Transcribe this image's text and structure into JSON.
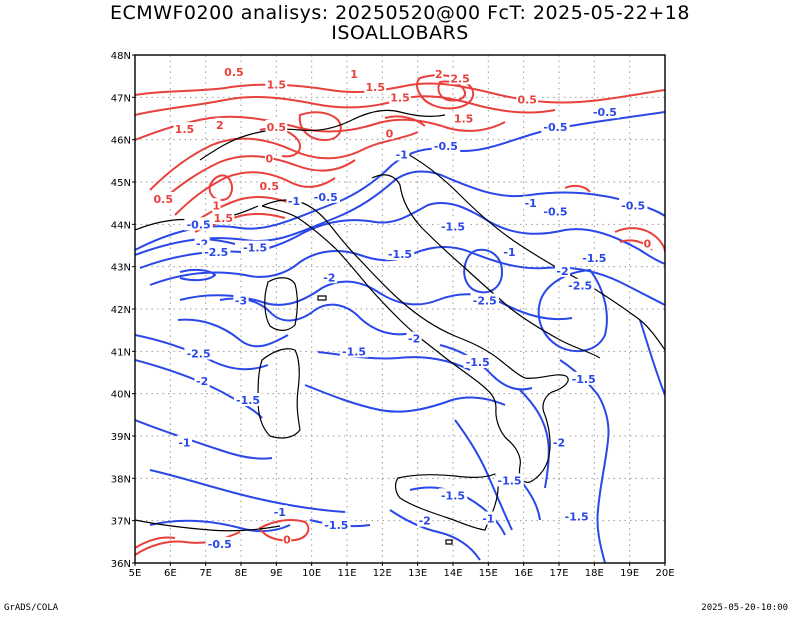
{
  "title": {
    "line1": "ECMWF0200 analisys: 20250520@00 FcT: 2025-05-22+18",
    "line2": "ISOALLOBARS"
  },
  "footer": {
    "left": "GrADS/COLA",
    "right": "2025-05-20-10:00"
  },
  "axes": {
    "lon_labels": [
      "5E",
      "6E",
      "7E",
      "8E",
      "9E",
      "10E",
      "11E",
      "12E",
      "13E",
      "14E",
      "15E",
      "16E",
      "17E",
      "18E",
      "19E",
      "20E"
    ],
    "lat_labels": [
      "48N",
      "47N",
      "46N",
      "45N",
      "44N",
      "43N",
      "42N",
      "41N",
      "40N",
      "39N",
      "38N",
      "37N",
      "36N"
    ],
    "lon_range": [
      5,
      20
    ],
    "lat_range": [
      36,
      48
    ],
    "grid": "dotted"
  },
  "colors": {
    "positive": "#e8413c",
    "negative": "#2a48e8",
    "coast": "#000000",
    "grid": "#9a9a9a"
  },
  "contour_labels": [
    {
      "text": "0.5",
      "lon": 7.8,
      "lat": 47.6,
      "sign": "pos"
    },
    {
      "text": "1.5",
      "lon": 9.0,
      "lat": 47.3,
      "sign": "pos"
    },
    {
      "text": "1",
      "lon": 11.2,
      "lat": 47.55,
      "sign": "pos"
    },
    {
      "text": "1.5",
      "lon": 11.8,
      "lat": 47.25,
      "sign": "pos"
    },
    {
      "text": "1.5",
      "lon": 12.5,
      "lat": 47.0,
      "sign": "pos"
    },
    {
      "text": "2",
      "lon": 13.6,
      "lat": 47.55,
      "sign": "pos"
    },
    {
      "text": "2.5",
      "lon": 14.2,
      "lat": 47.45,
      "sign": "pos"
    },
    {
      "text": "0.5",
      "lon": 16.1,
      "lat": 46.95,
      "sign": "pos"
    },
    {
      "text": "1.5",
      "lon": 6.4,
      "lat": 46.25,
      "sign": "pos"
    },
    {
      "text": "2",
      "lon": 7.4,
      "lat": 46.35,
      "sign": "pos"
    },
    {
      "text": "0.5",
      "lon": 9.0,
      "lat": 46.3,
      "sign": "pos"
    },
    {
      "text": "0",
      "lon": 12.2,
      "lat": 46.15,
      "sign": "pos"
    },
    {
      "text": "1.5",
      "lon": 14.3,
      "lat": 46.5,
      "sign": "pos"
    },
    {
      "text": "0",
      "lon": 8.8,
      "lat": 45.55,
      "sign": "pos"
    },
    {
      "text": "0.5",
      "lon": 8.8,
      "lat": 44.9,
      "sign": "pos"
    },
    {
      "text": "0.5",
      "lon": 5.8,
      "lat": 44.6,
      "sign": "pos"
    },
    {
      "text": "1",
      "lon": 7.3,
      "lat": 44.45,
      "sign": "pos"
    },
    {
      "text": "1.5",
      "lon": 7.5,
      "lat": 44.15,
      "sign": "pos"
    },
    {
      "text": "0",
      "lon": 19.5,
      "lat": 43.55,
      "sign": "pos"
    },
    {
      "text": "0",
      "lon": 9.3,
      "lat": 36.55,
      "sign": "pos"
    },
    {
      "text": "-0.5",
      "lon": 16.9,
      "lat": 46.3,
      "sign": "neg"
    },
    {
      "text": "-0.5",
      "lon": 18.3,
      "lat": 46.65,
      "sign": "neg"
    },
    {
      "text": "-0.5",
      "lon": 13.8,
      "lat": 45.85,
      "sign": "neg"
    },
    {
      "text": "-1",
      "lon": 12.55,
      "lat": 45.65,
      "sign": "neg"
    },
    {
      "text": "-0.5",
      "lon": 10.4,
      "lat": 44.65,
      "sign": "neg"
    },
    {
      "text": "-1",
      "lon": 9.5,
      "lat": 44.55,
      "sign": "neg"
    },
    {
      "text": "-0.5",
      "lon": 6.8,
      "lat": 44.0,
      "sign": "neg"
    },
    {
      "text": "-2",
      "lon": 6.9,
      "lat": 43.55,
      "sign": "neg"
    },
    {
      "text": "-2.5",
      "lon": 7.3,
      "lat": 43.35,
      "sign": "neg"
    },
    {
      "text": "-1.5",
      "lon": 8.4,
      "lat": 43.45,
      "sign": "neg"
    },
    {
      "text": "-1",
      "lon": 16.2,
      "lat": 44.5,
      "sign": "neg"
    },
    {
      "text": "-0.5",
      "lon": 16.9,
      "lat": 44.3,
      "sign": "neg"
    },
    {
      "text": "-0.5",
      "lon": 19.1,
      "lat": 44.45,
      "sign": "neg"
    },
    {
      "text": "-1.5",
      "lon": 14.0,
      "lat": 43.95,
      "sign": "neg"
    },
    {
      "text": "-1",
      "lon": 15.6,
      "lat": 43.35,
      "sign": "neg"
    },
    {
      "text": "-1.5",
      "lon": 18.0,
      "lat": 43.2,
      "sign": "neg"
    },
    {
      "text": "-2",
      "lon": 17.1,
      "lat": 42.9,
      "sign": "neg"
    },
    {
      "text": "-2.5",
      "lon": 17.6,
      "lat": 42.55,
      "sign": "neg"
    },
    {
      "text": "-1.5",
      "lon": 12.5,
      "lat": 43.3,
      "sign": "neg"
    },
    {
      "text": "-2",
      "lon": 10.5,
      "lat": 42.75,
      "sign": "neg"
    },
    {
      "text": "-3",
      "lon": 8.0,
      "lat": 42.2,
      "sign": "neg"
    },
    {
      "text": "-2.5",
      "lon": 14.9,
      "lat": 42.2,
      "sign": "neg"
    },
    {
      "text": "-2",
      "lon": 12.9,
      "lat": 41.3,
      "sign": "neg"
    },
    {
      "text": "-2.5",
      "lon": 6.8,
      "lat": 40.95,
      "sign": "neg"
    },
    {
      "text": "-1.5",
      "lon": 11.2,
      "lat": 41.0,
      "sign": "neg"
    },
    {
      "text": "-1.5",
      "lon": 14.7,
      "lat": 40.75,
      "sign": "neg"
    },
    {
      "text": "-1.5",
      "lon": 17.7,
      "lat": 40.35,
      "sign": "neg"
    },
    {
      "text": "-2",
      "lon": 6.9,
      "lat": 40.3,
      "sign": "neg"
    },
    {
      "text": "-1.5",
      "lon": 8.2,
      "lat": 39.85,
      "sign": "neg"
    },
    {
      "text": "-1",
      "lon": 6.4,
      "lat": 38.85,
      "sign": "neg"
    },
    {
      "text": "-2",
      "lon": 17.0,
      "lat": 38.85,
      "sign": "neg"
    },
    {
      "text": "-1.5",
      "lon": 15.6,
      "lat": 37.95,
      "sign": "neg"
    },
    {
      "text": "-1.5",
      "lon": 14.0,
      "lat": 37.6,
      "sign": "neg"
    },
    {
      "text": "-1",
      "lon": 15.0,
      "lat": 37.05,
      "sign": "neg"
    },
    {
      "text": "-2",
      "lon": 13.2,
      "lat": 37.0,
      "sign": "neg"
    },
    {
      "text": "-1.5",
      "lon": 17.5,
      "lat": 37.1,
      "sign": "neg"
    },
    {
      "text": "-1",
      "lon": 9.1,
      "lat": 37.2,
      "sign": "neg"
    },
    {
      "text": "-1.5",
      "lon": 10.7,
      "lat": 36.9,
      "sign": "neg"
    },
    {
      "text": "-0.5",
      "lon": 7.4,
      "lat": 36.45,
      "sign": "neg"
    }
  ]
}
